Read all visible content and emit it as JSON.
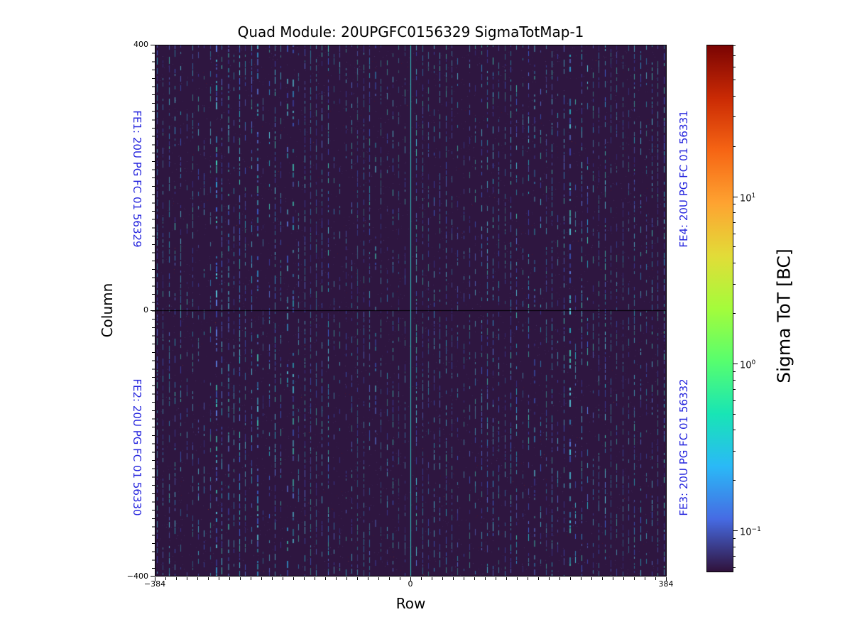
{
  "figure": {
    "background": "#ffffff"
  },
  "chart_data": {
    "type": "heatmap",
    "title": "Quad Module: 20UPGFC0156329 SigmaTotMap-1",
    "xlabel": "Row",
    "ylabel": "Column",
    "xlim": [
      -384,
      384
    ],
    "ylim": [
      -400,
      400
    ],
    "grid": false,
    "x_ticks": [
      "−384",
      "0",
      "384"
    ],
    "y_ticks": [
      "400",
      "0",
      "−400"
    ],
    "fe_label_color": "#2424dd",
    "fe_labels": [
      {
        "id": "FE1",
        "text": "FE1: 20U PG FC 01 56329",
        "position": "left-top"
      },
      {
        "id": "FE2",
        "text": "FE2: 20U PG FC 01 56330",
        "position": "left-bottom"
      },
      {
        "id": "FE4",
        "text": "FE4: 20U PG FC 01 56331",
        "position": "right-top"
      },
      {
        "id": "FE3",
        "text": "FE3: 20U PG FC 01 56332",
        "position": "right-bottom"
      }
    ],
    "colorbar": {
      "label": "Sigma ToT [BC]",
      "scale": "log",
      "colormap": "turbo",
      "range_approx": [
        0.056,
        81
      ],
      "ticks": [
        {
          "base": "10",
          "exp": "1",
          "value": 10
        },
        {
          "base": "10",
          "exp": "0",
          "value": 1
        },
        {
          "base": "10",
          "exp": "−1",
          "value": 0.1
        }
      ],
      "gradient_stops": [
        {
          "pos": 0,
          "color": "#7a0403"
        },
        {
          "pos": 10,
          "color": "#ca2a04"
        },
        {
          "pos": 20,
          "color": "#f66514"
        },
        {
          "pos": 30,
          "color": "#fea331"
        },
        {
          "pos": 40,
          "color": "#e2dc38"
        },
        {
          "pos": 50,
          "color": "#a4fc3b"
        },
        {
          "pos": 60,
          "color": "#57fe6e"
        },
        {
          "pos": 70,
          "color": "#18e5b5"
        },
        {
          "pos": 80,
          "color": "#2ab9f7"
        },
        {
          "pos": 90,
          "color": "#466be3"
        },
        {
          "pos": 100,
          "color": "#30123b"
        }
      ]
    },
    "heatmap": {
      "background": "#2e1640",
      "stripe_spacing_px": 8.3,
      "stripe_colors": [
        "#45c8dc",
        "#2e9fd4",
        "#3b66d8",
        "#3c46b0",
        "#57d8e8",
        "#27b9c9",
        "#3fd2b8",
        "#5a7de0"
      ],
      "dark_speckle": "#4a1430",
      "warm_speckle": "#96361e",
      "center_line_color": "#000000",
      "center_vertical_color": "#35c8c0"
    }
  }
}
